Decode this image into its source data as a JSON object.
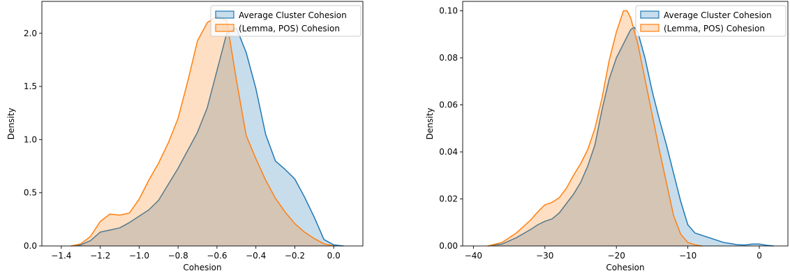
{
  "chart_data": [
    {
      "type": "area",
      "xlabel": "Cohesion",
      "ylabel": "Density",
      "xlim": [
        -1.5,
        0.15
      ],
      "ylim": [
        0,
        2.3
      ],
      "xticks": [
        -1.4,
        -1.2,
        -1.0,
        -0.8,
        -0.6,
        -0.4,
        -0.2,
        0.0
      ],
      "xtick_labels": [
        "−1.4",
        "−1.2",
        "−1.0",
        "−0.8",
        "−0.6",
        "−0.4",
        "−0.2",
        "0.0"
      ],
      "yticks": [
        0.0,
        0.5,
        1.0,
        1.5,
        2.0
      ],
      "ytick_labels": [
        "0.0",
        "0.5",
        "1.0",
        "1.5",
        "2.0"
      ],
      "legend_position": "top-right",
      "series": [
        {
          "name": "Average Cluster Cohesion",
          "color": "#1f77b4",
          "x": [
            -1.35,
            -1.3,
            -1.25,
            -1.2,
            -1.15,
            -1.1,
            -1.05,
            -1.0,
            -0.95,
            -0.9,
            -0.85,
            -0.8,
            -0.75,
            -0.7,
            -0.65,
            -0.6,
            -0.55,
            -0.5,
            -0.45,
            -0.4,
            -0.35,
            -0.3,
            -0.25,
            -0.2,
            -0.15,
            -0.1,
            -0.05,
            0.0,
            0.05
          ],
          "y": [
            0.0,
            0.01,
            0.05,
            0.13,
            0.15,
            0.17,
            0.22,
            0.28,
            0.34,
            0.43,
            0.58,
            0.73,
            0.9,
            1.07,
            1.3,
            1.65,
            2.0,
            2.05,
            1.82,
            1.48,
            1.05,
            0.8,
            0.72,
            0.63,
            0.46,
            0.27,
            0.06,
            0.01,
            0.0
          ]
        },
        {
          "name": "(Lemma, POS) Cohesion",
          "color": "#ff7f0e",
          "x": [
            -1.35,
            -1.3,
            -1.25,
            -1.2,
            -1.15,
            -1.1,
            -1.05,
            -1.0,
            -0.95,
            -0.9,
            -0.85,
            -0.8,
            -0.75,
            -0.7,
            -0.65,
            -0.6,
            -0.55,
            -0.5,
            -0.45,
            -0.4,
            -0.35,
            -0.3,
            -0.25,
            -0.2,
            -0.15,
            -0.1,
            -0.05,
            0.0
          ],
          "y": [
            0.0,
            0.02,
            0.09,
            0.23,
            0.3,
            0.29,
            0.31,
            0.44,
            0.62,
            0.78,
            0.97,
            1.2,
            1.55,
            1.93,
            2.1,
            2.16,
            2.12,
            1.56,
            1.04,
            0.82,
            0.62,
            0.45,
            0.32,
            0.21,
            0.13,
            0.07,
            0.02,
            0.0
          ]
        }
      ]
    },
    {
      "type": "area",
      "xlabel": "Cohesion",
      "ylabel": "Density",
      "xlim": [
        -41.5,
        4
      ],
      "ylim": [
        0,
        0.104
      ],
      "xticks": [
        -40,
        -30,
        -20,
        -10,
        0
      ],
      "xtick_labels": [
        "−40",
        "−30",
        "−20",
        "−10",
        "0"
      ],
      "yticks": [
        0.0,
        0.02,
        0.04,
        0.06,
        0.08,
        0.1
      ],
      "ytick_labels": [
        "0.00",
        "0.02",
        "0.04",
        "0.06",
        "0.08",
        "0.10"
      ],
      "legend_position": "top-right",
      "series": [
        {
          "name": "Average Cluster Cohesion",
          "color": "#1f77b4",
          "x": [
            -38,
            -36,
            -34,
            -32,
            -31,
            -30,
            -29,
            -28,
            -27,
            -26,
            -25,
            -24,
            -23,
            -22,
            -21,
            -20,
            -19,
            -18,
            -17.5,
            -17,
            -16,
            -15,
            -14,
            -13,
            -12,
            -11,
            -10,
            -9,
            -8,
            -7,
            -6,
            -5,
            -4,
            -3,
            -2,
            -1,
            0,
            1,
            2
          ],
          "y": [
            0.0,
            0.0008,
            0.0035,
            0.007,
            0.009,
            0.0105,
            0.0115,
            0.014,
            0.018,
            0.022,
            0.027,
            0.034,
            0.043,
            0.058,
            0.071,
            0.08,
            0.086,
            0.092,
            0.093,
            0.091,
            0.08,
            0.066,
            0.054,
            0.043,
            0.031,
            0.019,
            0.009,
            0.0055,
            0.0045,
            0.0035,
            0.0025,
            0.0015,
            0.001,
            0.0005,
            0.0004,
            0.0008,
            0.0008,
            0.0003,
            0.0
          ]
        },
        {
          "name": "(Lemma, POS) Cohesion",
          "color": "#ff7f0e",
          "x": [
            -38,
            -36,
            -34,
            -32,
            -31,
            -30,
            -29,
            -28,
            -27,
            -26,
            -25,
            -24,
            -23,
            -22,
            -21,
            -20,
            -19,
            -18.5,
            -18,
            -17,
            -16,
            -15,
            -14,
            -13,
            -12,
            -11,
            -10,
            -9,
            -8
          ],
          "y": [
            0.0,
            0.0015,
            0.0055,
            0.011,
            0.0145,
            0.0175,
            0.0185,
            0.0205,
            0.0245,
            0.03,
            0.035,
            0.041,
            0.05,
            0.063,
            0.079,
            0.091,
            0.1,
            0.1,
            0.097,
            0.086,
            0.071,
            0.056,
            0.041,
            0.027,
            0.013,
            0.005,
            0.0015,
            0.0005,
            0.0
          ]
        }
      ]
    }
  ]
}
